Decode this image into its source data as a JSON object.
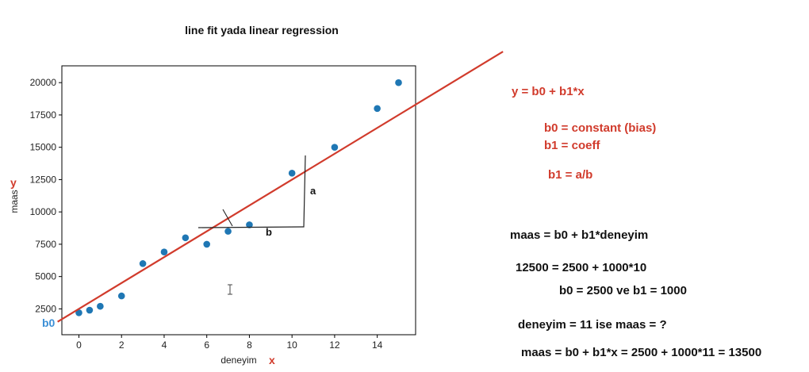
{
  "chart_data": {
    "type": "scatter",
    "title": "line fit yada linear regression",
    "xlabel": "deneyim",
    "ylabel": "maas",
    "xlim": [
      -0.8,
      15.8
    ],
    "ylim": [
      500,
      21300
    ],
    "xticks": [
      0,
      2,
      4,
      6,
      8,
      10,
      12,
      14
    ],
    "yticks": [
      2500,
      5000,
      7500,
      10000,
      12500,
      15000,
      17500,
      20000
    ],
    "points": [
      {
        "x": 0,
        "y": 2200
      },
      {
        "x": 0.5,
        "y": 2400
      },
      {
        "x": 1,
        "y": 2700
      },
      {
        "x": 2,
        "y": 3500
      },
      {
        "x": 3,
        "y": 6000
      },
      {
        "x": 4,
        "y": 6900
      },
      {
        "x": 5,
        "y": 8000
      },
      {
        "x": 6,
        "y": 7500
      },
      {
        "x": 7,
        "y": 8500
      },
      {
        "x": 8,
        "y": 9000
      },
      {
        "x": 10,
        "y": 13000
      },
      {
        "x": 12,
        "y": 15000
      },
      {
        "x": 14,
        "y": 18000
      },
      {
        "x": 15,
        "y": 20000
      }
    ],
    "fit_line": {
      "intercept": 2500,
      "slope": 1000,
      "x_range": [
        -1,
        19.9
      ]
    },
    "point_color": "#1f77b4",
    "line_color": "#d13b2c",
    "grid": false
  },
  "annotations": {
    "y_axis_letter": "y",
    "x_axis_letter": "x",
    "b0_marker": "b0",
    "label_a": "a",
    "label_b": "b"
  },
  "notes": {
    "line1": "y = b0 + b1*x",
    "line2": "b0 = constant (bias)",
    "line3": "b1 = coeff",
    "line4": "b1 = a/b",
    "line5": "maas = b0 + b1*deneyim",
    "line6": "12500 = 2500 + 1000*10",
    "line7": "b0 = 2500 ve b1 = 1000",
    "line8": "deneyim = 11 ise maas = ?",
    "line9": "maas = b0 + b1*x = 2500 + 1000*11 = 13500"
  }
}
